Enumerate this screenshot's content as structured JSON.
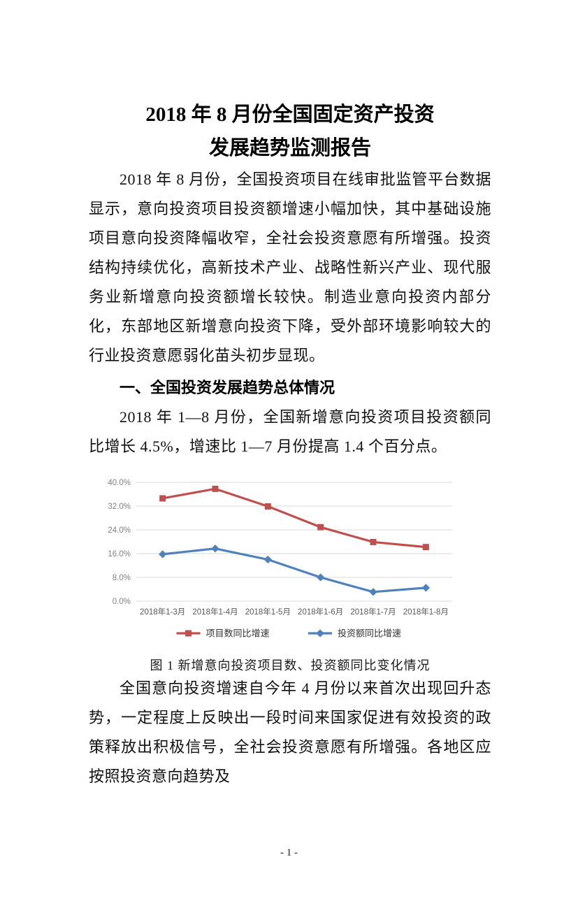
{
  "title": {
    "line1": "2018 年 8 月份全国固定资产投资",
    "line2": "发展趋势监测报告"
  },
  "sections": {
    "intro_paragraph": "2018 年 8 月份，全国投资项目在线审批监管平台数据显示，意向投资项目投资额增速小幅加快，其中基础设施项目意向投资降幅收窄，全社会投资意愿有所增强。投资结构持续优化，高新技术产业、战略性新兴产业、现代服务业新增意向投资额增长较快。制造业意向投资内部分化，东部地区新增意向投资下降，受外部环境影响较大的行业投资意愿弱化苗头初步显现。",
    "heading1": "一、全国投资发展趋势总体情况",
    "paragraph2": "2018 年 1—8 月份，全国新增意向投资项目投资额同比增长 4.5%，增速比 1—7 月份提高 1.4 个百分点。",
    "figure_caption": "图 1  新增意向投资项目数、投资额同比变化情况",
    "paragraph3": "全国意向投资增速自今年 4 月份以来首次出现回升态势，一定程度上反映出一段时间来国家促进有效投资的政策释放出积极信号，全社会投资意愿有所增强。各地区应按照投资意向趋势及"
  },
  "page": {
    "number_label": "- 1 -"
  },
  "chart_data": {
    "type": "line",
    "categories": [
      "2018年1-3月",
      "2018年1-4月",
      "2018年1-5月",
      "2018年1-6月",
      "2018年1-7月",
      "2018年1-8月"
    ],
    "series": [
      {
        "name": "项目数同比增速",
        "color": "#C0504D",
        "marker": "square",
        "values": [
          34.6,
          37.8,
          31.9,
          24.9,
          19.9,
          18.2
        ]
      },
      {
        "name": "投资额同比增速",
        "color": "#4F81BD",
        "marker": "diamond",
        "values": [
          15.8,
          17.7,
          14.0,
          8.0,
          3.1,
          4.5
        ]
      }
    ],
    "title": "",
    "ylim": [
      0,
      40
    ],
    "yticks": [
      "0.0%",
      "8.0%",
      "16.0%",
      "24.0%",
      "32.0%",
      "40.0%"
    ],
    "grid": true,
    "grid_color": "#D9D9D9",
    "ytick_color": "#808080",
    "xtick_color": "#595959",
    "legend_position": "bottom",
    "legend_text_color": "#333333"
  }
}
